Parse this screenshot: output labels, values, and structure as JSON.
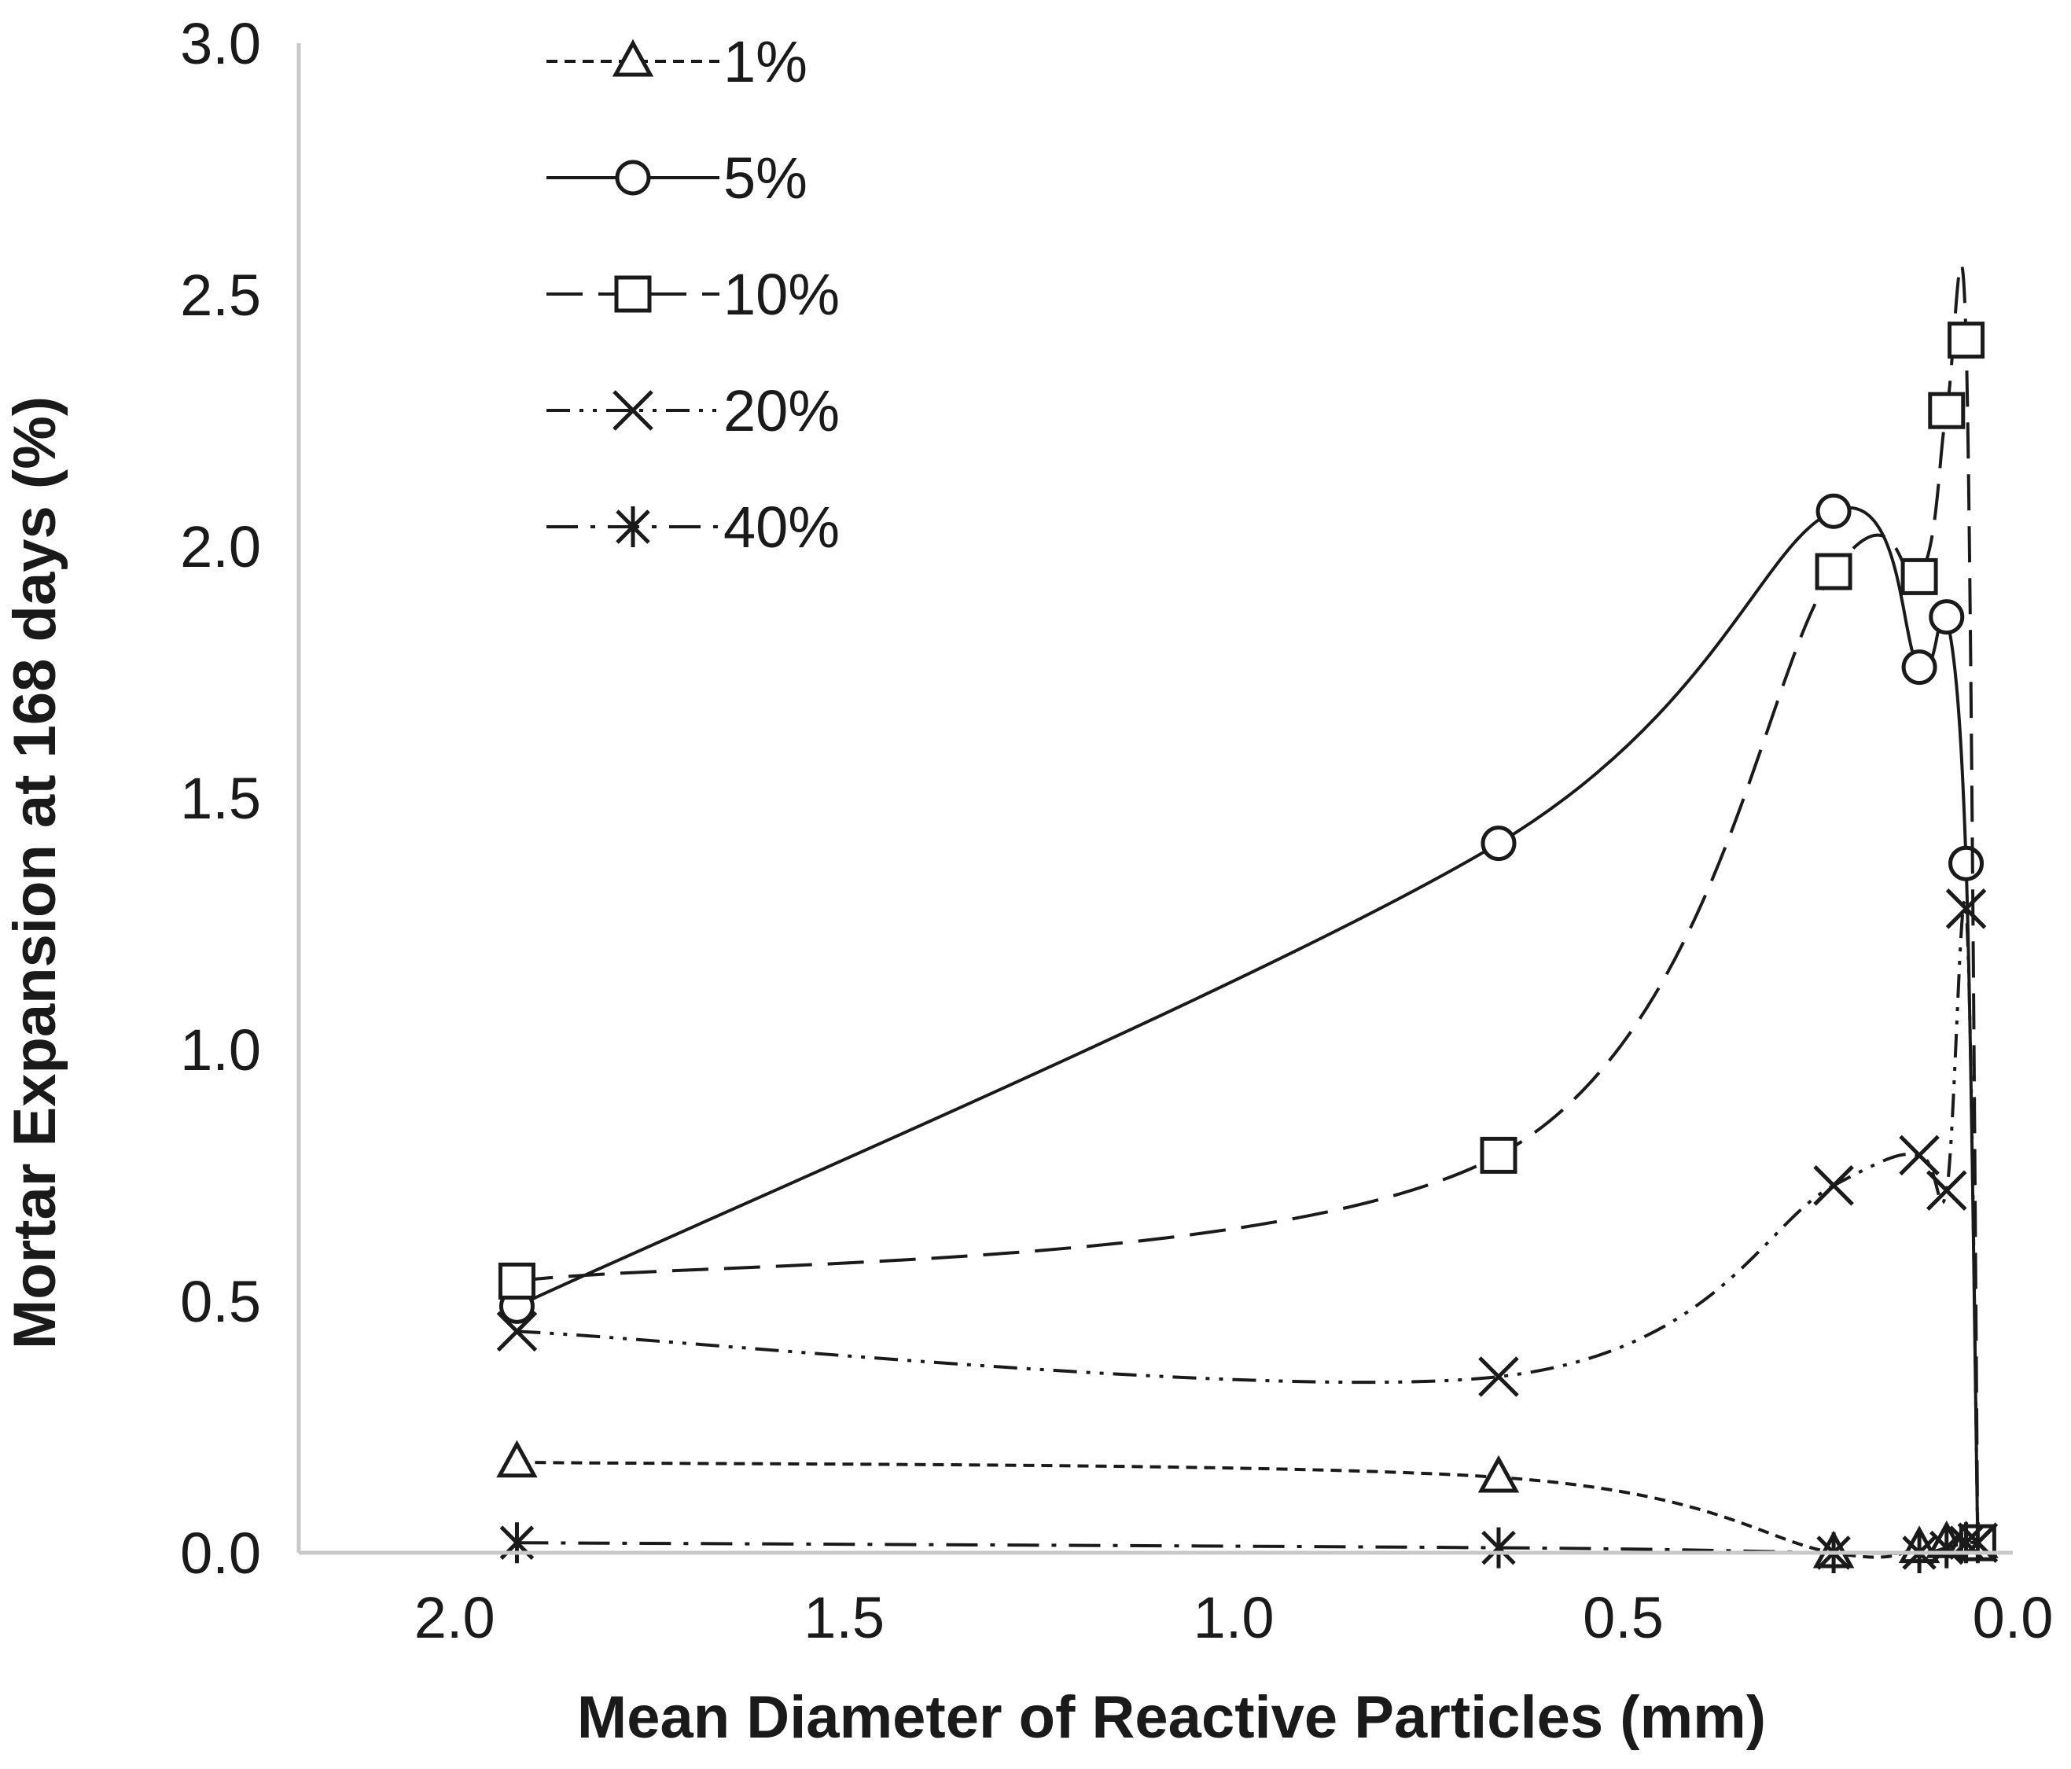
{
  "chart_data": {
    "type": "line",
    "xlabel": "Mean Diameter of Reactive Particles (mm)",
    "ylabel": "Mortar Expansion at 168 days (%)",
    "xlim": [
      2.2,
      0.0
    ],
    "ylim": [
      0.0,
      3.0
    ],
    "x_reversed": true,
    "x_ticks": [
      "2.0",
      "1.5",
      "1.0",
      "0.5",
      "0.0"
    ],
    "y_ticks": [
      "0.0",
      "0.5",
      "1.0",
      "1.5",
      "2.0",
      "2.5",
      "3.0"
    ],
    "grid": false,
    "legend_position": "top-left",
    "series": [
      {
        "name": "1%",
        "marker": "triangle",
        "line_style": "short-dash",
        "color": "#1a1a1a",
        "points": [
          [
            1.92,
            0.18
          ],
          [
            0.66,
            0.15
          ],
          [
            0.23,
            0.0
          ],
          [
            0.12,
            0.01
          ],
          [
            0.085,
            0.02
          ],
          [
            0.06,
            0.02
          ],
          [
            0.045,
            0.02
          ]
        ]
      },
      {
        "name": "5%",
        "marker": "circle",
        "line_style": "solid",
        "color": "#1a1a1a",
        "points": [
          [
            1.92,
            0.49
          ],
          [
            0.66,
            1.41
          ],
          [
            0.23,
            2.07
          ],
          [
            0.12,
            1.76
          ],
          [
            0.085,
            1.86
          ],
          [
            0.06,
            1.37
          ],
          [
            0.045,
            0.02
          ]
        ]
      },
      {
        "name": "10%",
        "marker": "square",
        "line_style": "long-dash",
        "color": "#1a1a1a",
        "points": [
          [
            1.92,
            0.54
          ],
          [
            0.66,
            0.79
          ],
          [
            0.23,
            1.95
          ],
          [
            0.12,
            1.94
          ],
          [
            0.085,
            2.27
          ],
          [
            0.06,
            2.41
          ],
          [
            0.045,
            0.02
          ]
        ]
      },
      {
        "name": "20%",
        "marker": "x",
        "line_style": "dash-dot-dot",
        "color": "#1a1a1a",
        "points": [
          [
            1.92,
            0.44
          ],
          [
            0.66,
            0.35
          ],
          [
            0.23,
            0.73
          ],
          [
            0.12,
            0.79
          ],
          [
            0.085,
            0.72
          ],
          [
            0.06,
            1.28
          ],
          [
            0.045,
            0.02
          ]
        ]
      },
      {
        "name": "40%",
        "marker": "asterisk",
        "line_style": "dash-dot",
        "color": "#1a1a1a",
        "points": [
          [
            1.92,
            0.02
          ],
          [
            0.66,
            0.01
          ],
          [
            0.23,
            0.0
          ],
          [
            0.12,
            0.0
          ],
          [
            0.085,
            0.01
          ],
          [
            0.06,
            0.02
          ],
          [
            0.045,
            0.02
          ]
        ]
      }
    ]
  }
}
